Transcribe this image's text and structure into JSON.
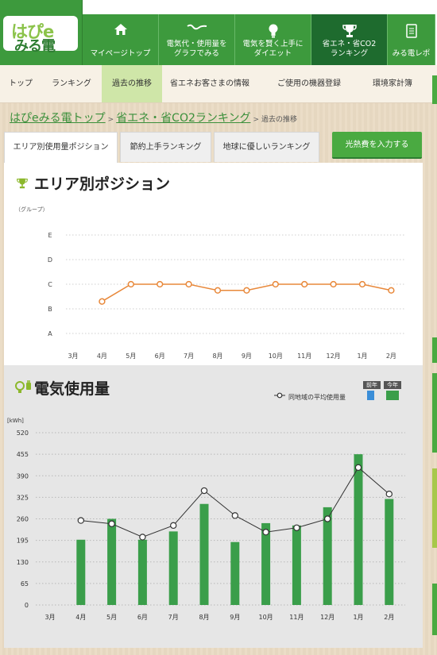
{
  "header": {
    "logo": {
      "top": "はぴe",
      "bottom": "みる電"
    },
    "nav": [
      {
        "label": "マイページトップ",
        "icon": "home-icon"
      },
      {
        "label": "電気代・使用量を\nグラフでみる",
        "icon": "wave-icon"
      },
      {
        "label": "電気を賢く上手に\nダイエット",
        "icon": "bulb-icon"
      },
      {
        "label": "省エネ・省CO2\nランキング",
        "icon": "trophy-icon",
        "active": true
      },
      {
        "label": "みる電レポ",
        "icon": "report-icon"
      }
    ]
  },
  "subnav": [
    {
      "label": "トップ"
    },
    {
      "label": "ランキング"
    },
    {
      "label": "過去の推移",
      "active": true
    },
    {
      "label": "省エネお客さまの情報"
    },
    {
      "label": "ご使用の機器登録"
    },
    {
      "label": "環境家計簿"
    }
  ],
  "breadcrumb": {
    "home": "はぴeみる電トップ",
    "sep1": ">",
    "section": "省エネ・省CO2ランキング",
    "sep2": ">",
    "current": "過去の推移"
  },
  "tabs": [
    {
      "label": "エリア別使用量ポジション",
      "active": true
    },
    {
      "label": "節約上手ランキング"
    },
    {
      "label": "地球に優しいランキング"
    }
  ],
  "input_button": "光熱費を入力する",
  "colors": {
    "brand_green": "#3d9a3d",
    "nav_active": "#1e6b2e",
    "orange": "#e8883a",
    "bar_green": "#3a9e4a"
  },
  "chart_data": [
    {
      "type": "line",
      "title": "エリア別ポジション",
      "ylabel": "（グループ）",
      "categories": [
        "3月",
        "4月",
        "5月",
        "6月",
        "7月",
        "8月",
        "9月",
        "10月",
        "11月",
        "12月",
        "1月",
        "2月"
      ],
      "y_levels": [
        "E",
        "D",
        "C",
        "B",
        "A"
      ],
      "values": [
        null,
        1.3,
        2.0,
        2.0,
        2.0,
        1.75,
        1.75,
        2.0,
        2.0,
        2.0,
        2.0,
        1.75
      ],
      "value_note": "",
      "grid": true
    },
    {
      "type": "bar",
      "title": "電気使用量",
      "ylabel": "[kWh]",
      "ylim": [
        0,
        520
      ],
      "yticks": [
        0,
        65,
        130,
        195,
        260,
        325,
        390,
        455,
        520
      ],
      "categories": [
        "3月",
        "4月",
        "5月",
        "6月",
        "7月",
        "8月",
        "9月",
        "10月",
        "11月",
        "12月",
        "1月",
        "2月"
      ],
      "legend": {
        "line": "同地域の平均使用量",
        "prev": "前年",
        "curr": "今年"
      },
      "series": [
        {
          "name": "今年",
          "values": [
            null,
            197,
            260,
            197,
            222,
            305,
            190,
            247,
            240,
            295,
            455,
            320
          ]
        },
        {
          "name": "同地域の平均使用量",
          "values": [
            null,
            255,
            245,
            205,
            240,
            345,
            270,
            220,
            233,
            260,
            415,
            335
          ]
        }
      ],
      "grid": true
    }
  ]
}
